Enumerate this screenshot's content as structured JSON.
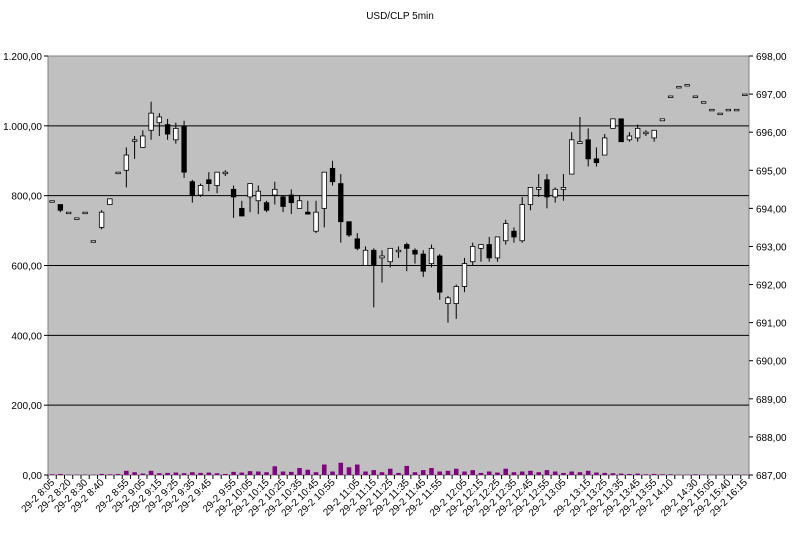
{
  "chart_data": {
    "type": "candlestick",
    "title": "USD/CLP  5min",
    "grid": true,
    "plot_background": "#c0c0c0",
    "volume_color": "#800080",
    "y_left": {
      "min": 0,
      "max": 1200,
      "ticks": [
        "0,00",
        "200,00",
        "400,00",
        "600,00",
        "800,00",
        "1.000,00",
        "1.200,00"
      ]
    },
    "y_right": {
      "min": 687,
      "max": 698,
      "ticks": [
        "687,00",
        "688,00",
        "689,00",
        "690,00",
        "691,00",
        "692,00",
        "693,00",
        "694,00",
        "695,00",
        "696,00",
        "697,00",
        "698,00"
      ]
    },
    "x_tick_labels": [
      "29-2 8:05",
      "29-2 8:20",
      "29-2 8:30",
      "29-2 8:40",
      "29-2 8:55",
      "29-2 9:05",
      "29-2 9:15",
      "29-2 9:25",
      "29-2 9:35",
      "29-2 9:45",
      "29-2 9:55",
      "29-2 10:05",
      "29-2 10:15",
      "29-2 10:25",
      "29-2 10:35",
      "29-2 10:45",
      "29-2 10:55",
      "29-2 11:05",
      "29-2 11:15",
      "29-2 11:25",
      "29-2 11:35",
      "29-2 11:45",
      "29-2 11:55",
      "29-2 12:05",
      "29-2 12:15",
      "29-2 12:25",
      "29-2 12:35",
      "29-2 12:45",
      "29-2 12:55",
      "29-2 13:05",
      "29-2 13:15",
      "29-2 13:25",
      "29-2 13:35",
      "29-2 13:45",
      "29-2 13:55",
      "29-2 14:10",
      "29-2 14:30",
      "29-2 15:05",
      "29-2 15:40",
      "29-2 16:15"
    ],
    "candles": [
      {
        "o": 694.2,
        "h": 694.2,
        "l": 694.2,
        "c": 694.2,
        "v": 2
      },
      {
        "o": 694.1,
        "h": 694.1,
        "l": 693.9,
        "c": 693.95,
        "v": 3
      },
      {
        "o": 693.9,
        "h": 693.9,
        "l": 693.9,
        "c": 693.9,
        "v": 1
      },
      {
        "o": 693.75,
        "h": 693.75,
        "l": 693.75,
        "c": 693.75,
        "v": 1
      },
      {
        "o": 693.9,
        "h": 693.9,
        "l": 693.9,
        "c": 693.9,
        "v": 1
      },
      {
        "o": 693.15,
        "h": 693.15,
        "l": 693.15,
        "c": 693.15,
        "v": 1
      },
      {
        "o": 693.5,
        "h": 693.95,
        "l": 693.45,
        "c": 693.9,
        "v": 3
      },
      {
        "o": 694.1,
        "h": 694.25,
        "l": 694.1,
        "c": 694.25,
        "v": 2
      },
      {
        "o": 694.95,
        "h": 694.95,
        "l": 694.95,
        "c": 694.95,
        "v": 3
      },
      {
        "o": 695.0,
        "h": 695.6,
        "l": 694.55,
        "c": 695.4,
        "v": 12
      },
      {
        "o": 695.8,
        "h": 695.9,
        "l": 695.3,
        "c": 695.8,
        "v": 8
      },
      {
        "o": 695.6,
        "h": 696.05,
        "l": 695.6,
        "c": 695.9,
        "v": 4
      },
      {
        "o": 696.05,
        "h": 696.8,
        "l": 695.8,
        "c": 696.5,
        "v": 12
      },
      {
        "o": 696.25,
        "h": 696.5,
        "l": 695.9,
        "c": 696.4,
        "v": 5
      },
      {
        "o": 696.2,
        "h": 696.35,
        "l": 695.8,
        "c": 695.95,
        "v": 6
      },
      {
        "o": 695.8,
        "h": 696.25,
        "l": 695.7,
        "c": 696.1,
        "v": 7
      },
      {
        "o": 696.15,
        "h": 696.3,
        "l": 694.8,
        "c": 694.95,
        "v": 5
      },
      {
        "o": 694.7,
        "h": 694.75,
        "l": 694.15,
        "c": 694.35,
        "v": 8
      },
      {
        "o": 694.35,
        "h": 694.65,
        "l": 694.3,
        "c": 694.6,
        "v": 6
      },
      {
        "o": 694.75,
        "h": 694.95,
        "l": 694.45,
        "c": 694.65,
        "v": 7
      },
      {
        "o": 694.6,
        "h": 694.95,
        "l": 694.4,
        "c": 694.95,
        "v": 5
      },
      {
        "o": 694.95,
        "h": 695.0,
        "l": 694.85,
        "c": 694.95,
        "v": 3
      },
      {
        "o": 694.5,
        "h": 694.6,
        "l": 693.75,
        "c": 694.3,
        "v": 9
      },
      {
        "o": 694.0,
        "h": 694.2,
        "l": 693.9,
        "c": 693.8,
        "v": 7
      },
      {
        "o": 694.3,
        "h": 694.65,
        "l": 693.9,
        "c": 694.65,
        "v": 11
      },
      {
        "o": 694.2,
        "h": 694.6,
        "l": 693.85,
        "c": 694.45,
        "v": 10
      },
      {
        "o": 694.15,
        "h": 694.2,
        "l": 693.9,
        "c": 693.95,
        "v": 8
      },
      {
        "o": 694.35,
        "h": 694.7,
        "l": 694.1,
        "c": 694.5,
        "v": 25
      },
      {
        "o": 694.3,
        "h": 694.35,
        "l": 693.9,
        "c": 694.05,
        "v": 10
      },
      {
        "o": 694.35,
        "h": 694.5,
        "l": 693.85,
        "c": 694.15,
        "v": 9
      },
      {
        "o": 694.0,
        "h": 694.35,
        "l": 694.0,
        "c": 694.2,
        "v": 20
      },
      {
        "o": 693.9,
        "h": 694.2,
        "l": 693.9,
        "c": 693.85,
        "v": 15
      },
      {
        "o": 693.4,
        "h": 694.2,
        "l": 693.35,
        "c": 693.9,
        "v": 8
      },
      {
        "o": 694.0,
        "h": 694.05,
        "l": 693.5,
        "c": 694.95,
        "v": 30
      },
      {
        "o": 695.05,
        "h": 695.25,
        "l": 694.6,
        "c": 694.7,
        "v": 10
      },
      {
        "o": 694.65,
        "h": 694.9,
        "l": 693.1,
        "c": 693.65,
        "v": 35
      },
      {
        "o": 693.65,
        "h": 693.65,
        "l": 693.25,
        "c": 693.3,
        "v": 22
      },
      {
        "o": 693.2,
        "h": 693.35,
        "l": 692.9,
        "c": 692.95,
        "v": 30
      },
      {
        "o": 692.5,
        "h": 693.0,
        "l": 692.5,
        "c": 692.9,
        "v": 10
      },
      {
        "o": 692.9,
        "h": 692.95,
        "l": 691.4,
        "c": 692.5,
        "v": 14
      },
      {
        "o": 692.7,
        "h": 692.9,
        "l": 692.05,
        "c": 692.75,
        "v": 8
      },
      {
        "o": 692.6,
        "h": 692.95,
        "l": 692.45,
        "c": 692.95,
        "v": 18
      },
      {
        "o": 692.9,
        "h": 693.0,
        "l": 692.7,
        "c": 692.9,
        "v": 6
      },
      {
        "o": 693.05,
        "h": 693.1,
        "l": 692.35,
        "c": 692.95,
        "v": 26
      },
      {
        "o": 692.9,
        "h": 692.95,
        "l": 692.55,
        "c": 692.8,
        "v": 8
      },
      {
        "o": 692.8,
        "h": 692.9,
        "l": 692.2,
        "c": 692.35,
        "v": 14
      },
      {
        "o": 692.55,
        "h": 693.05,
        "l": 692.45,
        "c": 692.95,
        "v": 20
      },
      {
        "o": 692.75,
        "h": 692.8,
        "l": 691.6,
        "c": 691.8,
        "v": 10
      },
      {
        "o": 691.5,
        "h": 691.7,
        "l": 691.0,
        "c": 691.65,
        "v": 12
      },
      {
        "o": 691.5,
        "h": 692.0,
        "l": 691.1,
        "c": 691.95,
        "v": 18
      },
      {
        "o": 691.95,
        "h": 692.7,
        "l": 691.8,
        "c": 692.55,
        "v": 10
      },
      {
        "o": 692.6,
        "h": 693.1,
        "l": 692.5,
        "c": 693.0,
        "v": 14
      },
      {
        "o": 692.95,
        "h": 693.05,
        "l": 692.6,
        "c": 693.05,
        "v": 6
      },
      {
        "o": 693.05,
        "h": 693.25,
        "l": 692.6,
        "c": 692.7,
        "v": 10
      },
      {
        "o": 692.7,
        "h": 693.25,
        "l": 692.6,
        "c": 693.25,
        "v": 7
      },
      {
        "o": 693.15,
        "h": 693.7,
        "l": 693.05,
        "c": 693.6,
        "v": 18
      },
      {
        "o": 693.4,
        "h": 693.5,
        "l": 693.1,
        "c": 693.25,
        "v": 8
      },
      {
        "o": 693.15,
        "h": 694.3,
        "l": 693.1,
        "c": 694.1,
        "v": 10
      },
      {
        "o": 694.1,
        "h": 694.55,
        "l": 693.95,
        "c": 694.55,
        "v": 12
      },
      {
        "o": 694.5,
        "h": 694.9,
        "l": 694.3,
        "c": 694.55,
        "v": 8
      },
      {
        "o": 694.75,
        "h": 694.9,
        "l": 694.0,
        "c": 694.3,
        "v": 14
      },
      {
        "o": 694.3,
        "h": 694.55,
        "l": 694.15,
        "c": 694.5,
        "v": 10
      },
      {
        "o": 694.5,
        "h": 694.9,
        "l": 694.2,
        "c": 694.55,
        "v": 6
      },
      {
        "o": 694.9,
        "h": 696.0,
        "l": 694.9,
        "c": 695.8,
        "v": 10
      },
      {
        "o": 695.7,
        "h": 696.4,
        "l": 695.7,
        "c": 695.75,
        "v": 8
      },
      {
        "o": 695.8,
        "h": 696.1,
        "l": 695.1,
        "c": 695.3,
        "v": 12
      },
      {
        "o": 695.3,
        "h": 695.6,
        "l": 695.1,
        "c": 695.2,
        "v": 7
      },
      {
        "o": 695.4,
        "h": 695.95,
        "l": 695.4,
        "c": 695.85,
        "v": 6
      },
      {
        "o": 696.1,
        "h": 696.35,
        "l": 696.1,
        "c": 696.35,
        "v": 5
      },
      {
        "o": 696.35,
        "h": 696.35,
        "l": 695.75,
        "c": 695.75,
        "v": 4
      },
      {
        "o": 695.8,
        "h": 696.0,
        "l": 695.75,
        "c": 695.9,
        "v": 3
      },
      {
        "o": 695.85,
        "h": 696.2,
        "l": 695.75,
        "c": 696.1,
        "v": 4
      },
      {
        "o": 696.0,
        "h": 696.05,
        "l": 695.9,
        "c": 696.0,
        "v": 2
      },
      {
        "o": 695.85,
        "h": 696.05,
        "l": 695.75,
        "c": 696.05,
        "v": 3
      },
      {
        "o": 696.3,
        "h": 696.35,
        "l": 696.3,
        "c": 696.35,
        "v": 2
      },
      {
        "o": 696.95,
        "h": 696.95,
        "l": 696.95,
        "c": 696.95,
        "v": 2
      },
      {
        "o": 697.2,
        "h": 697.2,
        "l": 697.2,
        "c": 697.2,
        "v": 1
      },
      {
        "o": 697.25,
        "h": 697.25,
        "l": 697.25,
        "c": 697.25,
        "v": 1
      },
      {
        "o": 696.95,
        "h": 696.95,
        "l": 696.95,
        "c": 696.95,
        "v": 2
      },
      {
        "o": 696.8,
        "h": 696.8,
        "l": 696.8,
        "c": 696.8,
        "v": 1
      },
      {
        "o": 696.6,
        "h": 696.6,
        "l": 696.6,
        "c": 696.6,
        "v": 1
      },
      {
        "o": 696.5,
        "h": 696.5,
        "l": 696.5,
        "c": 696.5,
        "v": 1
      },
      {
        "o": 696.6,
        "h": 696.6,
        "l": 696.6,
        "c": 696.6,
        "v": 1
      },
      {
        "o": 696.6,
        "h": 696.6,
        "l": 696.6,
        "c": 696.6,
        "v": 1
      },
      {
        "o": 697.0,
        "h": 697.0,
        "l": 697.0,
        "c": 697.0,
        "v": 1
      }
    ]
  }
}
